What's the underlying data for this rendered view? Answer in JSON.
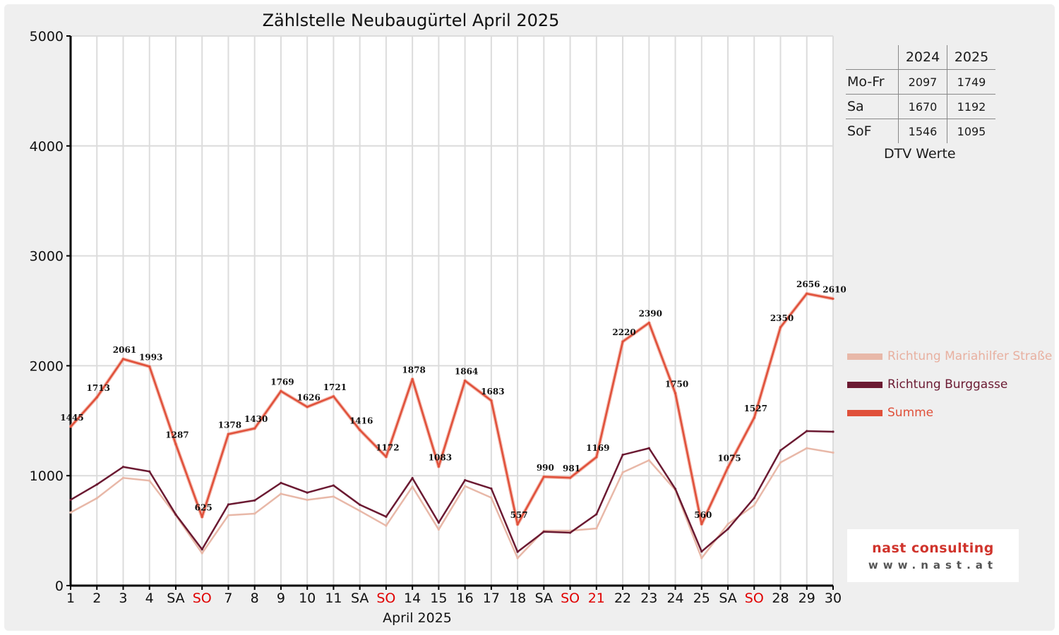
{
  "chart_data": {
    "type": "line",
    "title": "Zählstelle Neubaugürtel April 2025",
    "xlabel": "April 2025",
    "ylabel": "",
    "ylim": [
      0,
      5000
    ],
    "yticks": [
      0,
      1000,
      2000,
      3000,
      4000,
      5000
    ],
    "grid": true,
    "legend_position": "right",
    "categories": [
      "1",
      "2",
      "3",
      "4",
      "SA",
      "SO",
      "7",
      "8",
      "9",
      "10",
      "11",
      "SA",
      "SO",
      "14",
      "15",
      "16",
      "17",
      "18",
      "SA",
      "SO",
      "21",
      "22",
      "23",
      "24",
      "25",
      "SA",
      "SO",
      "28",
      "29",
      "30"
    ],
    "highlighted_categories": [
      5,
      12,
      19,
      20,
      26
    ],
    "series": [
      {
        "name": "Richtung Mariahilfer Straße",
        "color": "#e8b8a8",
        "values": [
          665,
          795,
          980,
          955,
          640,
          295,
          640,
          655,
          835,
          780,
          810,
          680,
          545,
          900,
          510,
          905,
          800,
          250,
          500,
          500,
          520,
          1030,
          1140,
          870,
          250,
          560,
          730,
          1120,
          1250,
          1210
        ]
      },
      {
        "name": "Richtung Burggasse",
        "color": "#6b1a32",
        "values": [
          780,
          920,
          1080,
          1038,
          647,
          330,
          738,
          775,
          934,
          846,
          911,
          736,
          627,
          978,
          573,
          959,
          883,
          307,
          490,
          481,
          649,
          1190,
          1250,
          880,
          310,
          515,
          797,
          1230,
          1406,
          1400
        ]
      },
      {
        "name": "Summe",
        "color": "#e0503a",
        "values": [
          1445,
          1713,
          2061,
          1993,
          1287,
          625,
          1378,
          1430,
          1769,
          1626,
          1721,
          1416,
          1172,
          1878,
          1083,
          1864,
          1683,
          557,
          990,
          981,
          1169,
          2220,
          2390,
          1750,
          560,
          1075,
          1527,
          2350,
          2656,
          2610
        ]
      }
    ]
  },
  "dtv_table": {
    "headers": [
      "",
      "2024",
      "2025"
    ],
    "rows": [
      {
        "label": "Mo-Fr",
        "v2024": "2097",
        "v2025": "1749"
      },
      {
        "label": "Sa",
        "v2024": "1670",
        "v2025": "1192"
      },
      {
        "label": "SoF",
        "v2024": "1546",
        "v2025": "1095"
      }
    ],
    "caption": "DTV Werte"
  },
  "logo": {
    "line1": "nast consulting",
    "line2": "www.nast.at",
    "color": "#d0342c"
  },
  "colors": {
    "background": "#efefef",
    "weekend_highlight": "#e00000"
  }
}
